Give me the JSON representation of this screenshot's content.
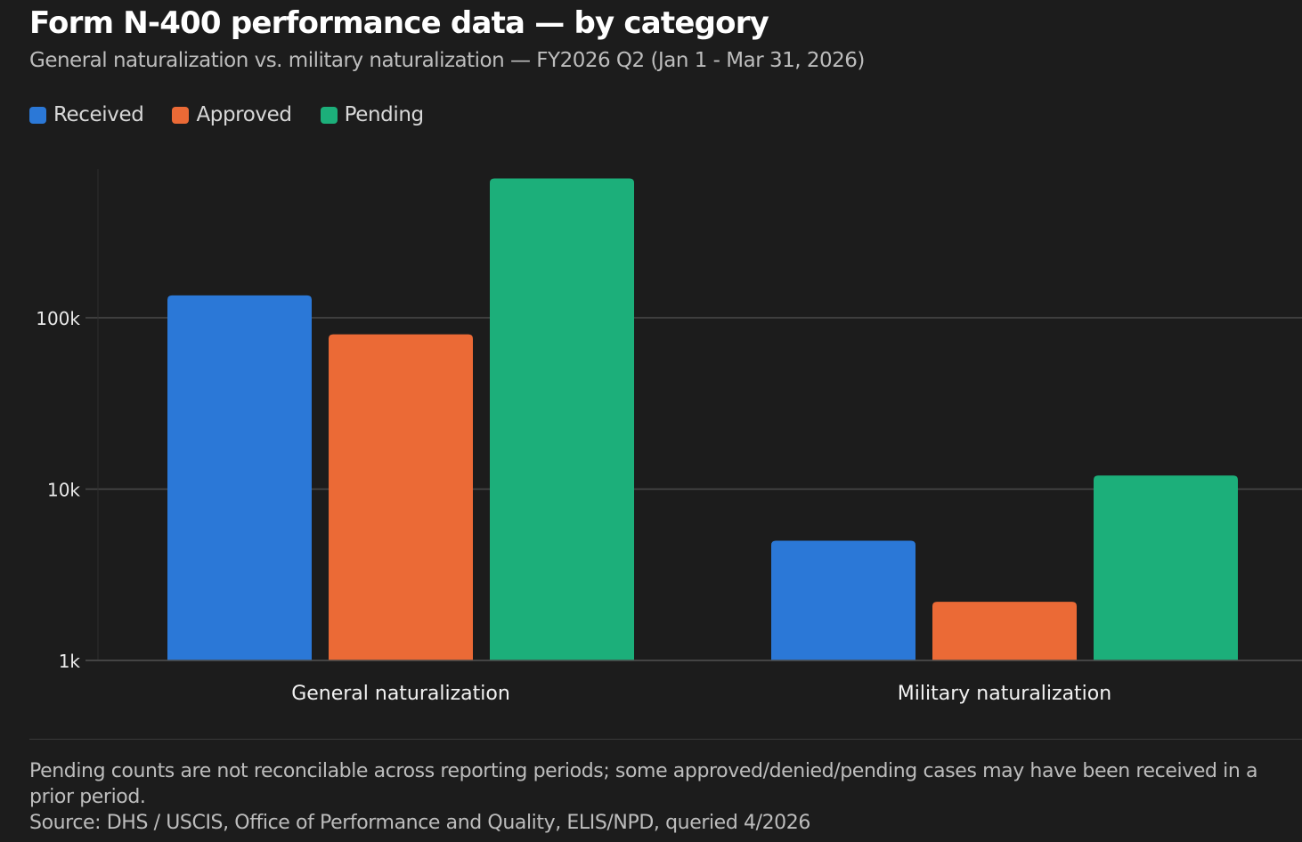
{
  "title": "Form N-400 performance data — by category",
  "subtitle": "General naturalization vs. military naturalization — FY2026 Q2 (Jan 1 - Mar 31, 2026)",
  "colors": {
    "background": "#1c1c1c",
    "received": "#2b78d7",
    "approved": "#eb6a36",
    "pending": "#1caf7a",
    "grid": "#4a4a4a"
  },
  "chart_data": {
    "type": "bar",
    "y_scale": "log",
    "ylim": [
      1000,
      1000000
    ],
    "yticks": [
      {
        "value": 1000,
        "label": "1k"
      },
      {
        "value": 10000,
        "label": "10k"
      },
      {
        "value": 100000,
        "label": "100k"
      }
    ],
    "categories": [
      "General naturalization",
      "Military naturalization"
    ],
    "series": [
      {
        "name": "Received",
        "color": "#2b78d7",
        "values": [
          135000,
          5000
        ]
      },
      {
        "name": "Approved",
        "color": "#eb6a36",
        "values": [
          80000,
          2200
        ]
      },
      {
        "name": "Pending",
        "color": "#1caf7a",
        "values": [
          650000,
          12000
        ]
      }
    ],
    "grid": true,
    "legend": "top-left"
  },
  "footnote": {
    "line1": "Pending counts are not reconcilable across reporting periods; some approved/denied/pending cases may have been received in a prior period.",
    "line2": "Source: DHS / USCIS, Office of Performance and Quality, ELIS/NPD, queried 4/2026"
  }
}
